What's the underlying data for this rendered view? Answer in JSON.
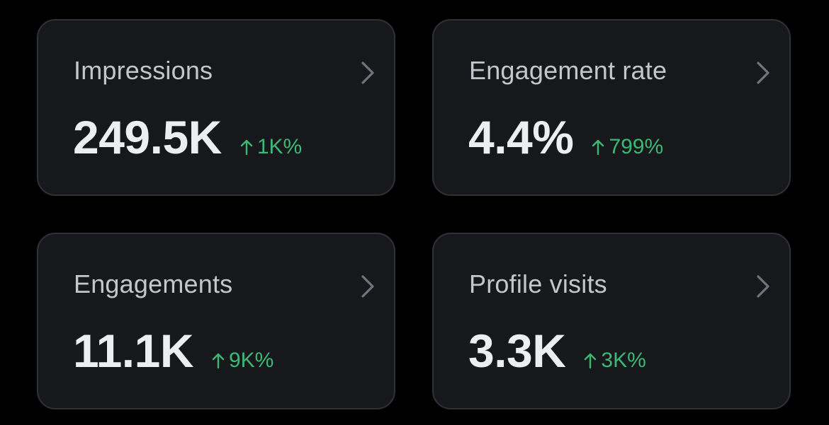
{
  "cards": [
    {
      "title": "Impressions",
      "value": "249.5K",
      "change": "1K%"
    },
    {
      "title": "Engagement rate",
      "value": "4.4%",
      "change": "799%"
    },
    {
      "title": "Engagements",
      "value": "11.1K",
      "change": "9K%"
    },
    {
      "title": "Profile visits",
      "value": "3.3K",
      "change": "3K%"
    }
  ],
  "colors": {
    "background": "#000000",
    "card": "#16181c",
    "border": "#2f3336",
    "title": "#c3c6cb",
    "value": "#eceff1",
    "positive": "#3bb873"
  },
  "icons": {
    "chevron": "chevron-right-icon",
    "trend": "arrow-up-icon"
  }
}
